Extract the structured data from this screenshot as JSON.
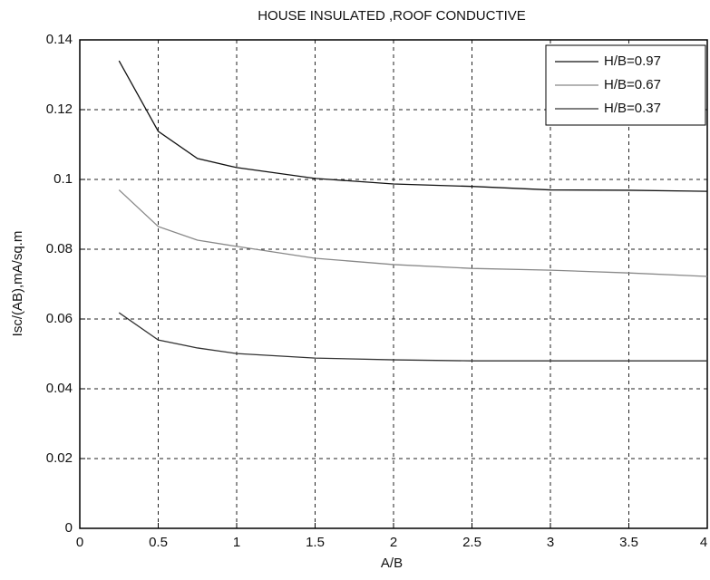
{
  "chart_data": {
    "type": "line",
    "title": "HOUSE INSULATED ,ROOF CONDUCTIVE",
    "x_label": "A/B",
    "y_label": "Isc/(AB),mA/sq.m",
    "x": [
      0.25,
      0.5,
      0.75,
      1,
      1.5,
      2,
      2.5,
      3,
      3.5,
      4
    ],
    "series": [
      {
        "name": "H/B=0.97",
        "color": "#111111",
        "values": [
          0.134,
          0.1138,
          0.106,
          0.1034,
          0.1003,
          0.0987,
          0.098,
          0.097,
          0.0969,
          0.0966
        ]
      },
      {
        "name": "H/B=0.67",
        "color": "#888888",
        "values": [
          0.097,
          0.0865,
          0.0826,
          0.0808,
          0.0774,
          0.0756,
          0.0745,
          0.074,
          0.0732,
          0.0722
        ]
      },
      {
        "name": "H/B=0.37",
        "color": "#333333",
        "values": [
          0.0618,
          0.054,
          0.0517,
          0.0501,
          0.0488,
          0.0483,
          0.048,
          0.048,
          0.048,
          0.048
        ]
      }
    ],
    "xlim": [
      0,
      4
    ],
    "xticks": [
      0,
      0.5,
      1,
      1.5,
      2,
      2.5,
      3,
      3.5,
      4
    ],
    "ylim": [
      0,
      0.14
    ],
    "yticks": [
      0,
      0.02,
      0.04,
      0.06,
      0.08,
      0.1,
      0.12,
      0.14
    ],
    "grid": true,
    "legend": "upper right"
  }
}
